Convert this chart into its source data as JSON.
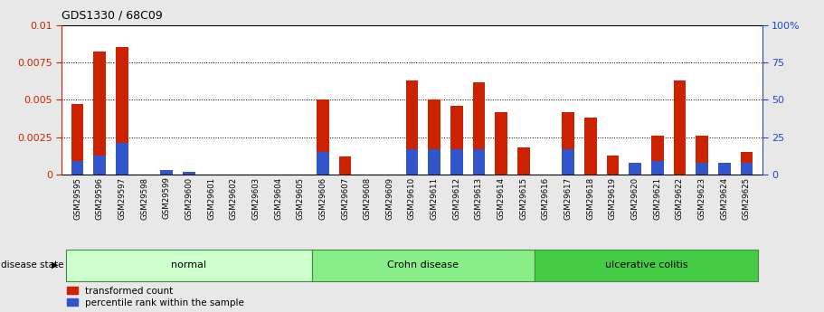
{
  "title": "GDS1330 / 68C09",
  "samples": [
    "GSM29595",
    "GSM29596",
    "GSM29597",
    "GSM29598",
    "GSM29599",
    "GSM29600",
    "GSM29601",
    "GSM29602",
    "GSM29603",
    "GSM29604",
    "GSM29605",
    "GSM29606",
    "GSM29607",
    "GSM29608",
    "GSM29609",
    "GSM29610",
    "GSM29611",
    "GSM29612",
    "GSM29613",
    "GSM29614",
    "GSM29615",
    "GSM29616",
    "GSM29617",
    "GSM29618",
    "GSM29619",
    "GSM29620",
    "GSM29621",
    "GSM29622",
    "GSM29623",
    "GSM29624",
    "GSM29625"
  ],
  "red_values": [
    0.0047,
    0.0082,
    0.0085,
    0.0,
    0.0,
    0.0,
    0.0,
    0.0,
    0.0,
    0.0,
    0.0,
    0.005,
    0.0012,
    0.0,
    0.0,
    0.0063,
    0.005,
    0.0046,
    0.0062,
    0.0042,
    0.0018,
    0.0,
    0.0042,
    0.0038,
    0.0013,
    0.0,
    0.0026,
    0.0063,
    0.0026,
    0.0,
    0.0015
  ],
  "blue_pct": [
    9,
    13,
    21,
    0,
    3,
    2,
    0,
    0,
    0,
    0,
    0,
    15,
    0,
    0,
    0,
    17,
    17,
    17,
    17,
    0,
    0,
    0,
    17,
    0,
    0,
    8,
    9,
    0,
    8,
    8,
    8
  ],
  "groups": [
    {
      "label": "normal",
      "start": 0,
      "end": 10,
      "color": "#ccffcc"
    },
    {
      "label": "Crohn disease",
      "start": 11,
      "end": 20,
      "color": "#88ee88"
    },
    {
      "label": "ulcerative colitis",
      "start": 21,
      "end": 30,
      "color": "#44cc44"
    }
  ],
  "ylim_left": [
    0,
    0.01
  ],
  "ylim_right": [
    0,
    100
  ],
  "yticks_left": [
    0,
    0.0025,
    0.005,
    0.0075,
    0.01
  ],
  "yticks_right": [
    0,
    25,
    50,
    75,
    100
  ],
  "bar_color_red": "#cc2200",
  "bar_color_blue": "#3355cc",
  "background_color": "#e8e8e8",
  "plot_bg_color": "#ffffff",
  "left_axis_color": "#cc2200",
  "right_axis_color": "#2244cc",
  "xtick_bg_color": "#d0d0d0"
}
